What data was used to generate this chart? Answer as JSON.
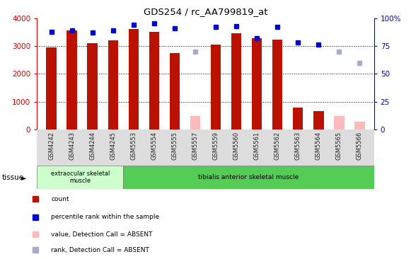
{
  "title": "GDS254 / rc_AA799819_at",
  "categories": [
    "GSM4242",
    "GSM4243",
    "GSM4244",
    "GSM4245",
    "GSM5553",
    "GSM5554",
    "GSM5555",
    "GSM5557",
    "GSM5559",
    "GSM5560",
    "GSM5561",
    "GSM5562",
    "GSM5563",
    "GSM5564",
    "GSM5565",
    "GSM5566"
  ],
  "bar_values": [
    2950,
    3550,
    3100,
    3200,
    3600,
    3500,
    2750,
    0,
    3050,
    3450,
    3280,
    3220,
    780,
    650,
    0,
    0
  ],
  "bar_absent_values": [
    0,
    0,
    0,
    0,
    0,
    0,
    0,
    480,
    0,
    0,
    0,
    0,
    0,
    0,
    480,
    280
  ],
  "bar_color_present": "#bb1100",
  "bar_color_absent": "#ffbbbb",
  "dot_values": [
    88,
    89,
    87,
    89,
    94,
    95,
    91,
    70,
    92,
    93,
    82,
    92,
    78,
    76,
    70,
    60
  ],
  "dot_color_present": "#0000cc",
  "dot_color_absent": "#aaaacc",
  "absent_samples": [
    7,
    14,
    15
  ],
  "ylim_left": [
    0,
    4000
  ],
  "ylim_right": [
    0,
    100
  ],
  "yticks_left": [
    0,
    1000,
    2000,
    3000,
    4000
  ],
  "ytick_labels_left": [
    "0",
    "1000",
    "2000",
    "3000",
    "4000"
  ],
  "yticks_right": [
    0,
    25,
    50,
    75,
    100
  ],
  "ytick_labels_right": [
    "0",
    "25",
    "50",
    "75",
    "100%"
  ],
  "tissue_groups": [
    {
      "label": "extraocular skeletal\nmuscle",
      "start": 0,
      "end": 4
    },
    {
      "label": "tibialis anterior skeletal muscle",
      "start": 4,
      "end": 16
    }
  ],
  "tissue_color_light": "#ccffcc",
  "tissue_color_dark": "#55cc55",
  "background_color": "#ffffff",
  "gridline_color": "#000000",
  "ylabel_left_color": "#cc0000",
  "ylabel_right_color": "#0000cc",
  "xtick_bg_color": "#dddddd",
  "legend_items": [
    {
      "label": "count",
      "color": "#bb1100"
    },
    {
      "label": "percentile rank within the sample",
      "color": "#0000cc"
    },
    {
      "label": "value, Detection Call = ABSENT",
      "color": "#ffbbbb"
    },
    {
      "label": "rank, Detection Call = ABSENT",
      "color": "#aaaacc"
    }
  ]
}
